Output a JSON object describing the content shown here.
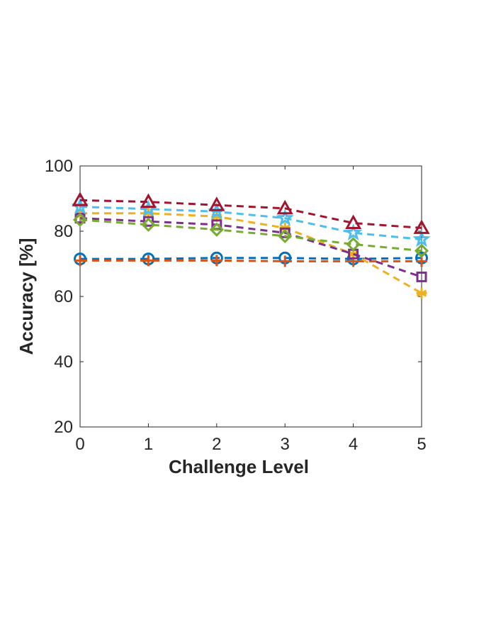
{
  "chart_data": {
    "type": "line",
    "title": "",
    "xlabel": "Challenge Level",
    "ylabel": "Accuracy [%]",
    "x": [
      0,
      1,
      2,
      3,
      4,
      5
    ],
    "xlim": [
      0,
      5
    ],
    "ylim": [
      20,
      100
    ],
    "xticks": [
      0,
      1,
      2,
      3,
      4,
      5
    ],
    "yticks": [
      20,
      40,
      60,
      80,
      100
    ],
    "grid": false,
    "legend": "none",
    "series": [
      {
        "values": [
          71.5,
          71.5,
          71.8,
          71.8,
          71.5,
          71.8
        ],
        "color": "#0072BD",
        "marker": "circle"
      },
      {
        "values": [
          71.0,
          71.0,
          71.0,
          70.8,
          70.8,
          70.8
        ],
        "color": "#D95319",
        "marker": "plus"
      },
      {
        "values": [
          85.5,
          85.5,
          84.5,
          81.0,
          73.0,
          61.0
        ],
        "color": "#EDB120",
        "marker": "asterisk"
      },
      {
        "values": [
          84.0,
          83.0,
          82.0,
          79.5,
          73.0,
          66.0
        ],
        "color": "#7E2F8E",
        "marker": "square"
      },
      {
        "values": [
          83.5,
          82.0,
          80.5,
          78.5,
          76.0,
          74.0
        ],
        "color": "#77AC30",
        "marker": "diamond"
      },
      {
        "values": [
          87.5,
          86.8,
          86.0,
          84.0,
          79.5,
          77.5
        ],
        "color": "#4DBEEE",
        "marker": "pentagram"
      },
      {
        "values": [
          89.5,
          89.0,
          88.0,
          87.0,
          82.5,
          81.0
        ],
        "color": "#A2142F",
        "marker": "triangle"
      }
    ]
  }
}
